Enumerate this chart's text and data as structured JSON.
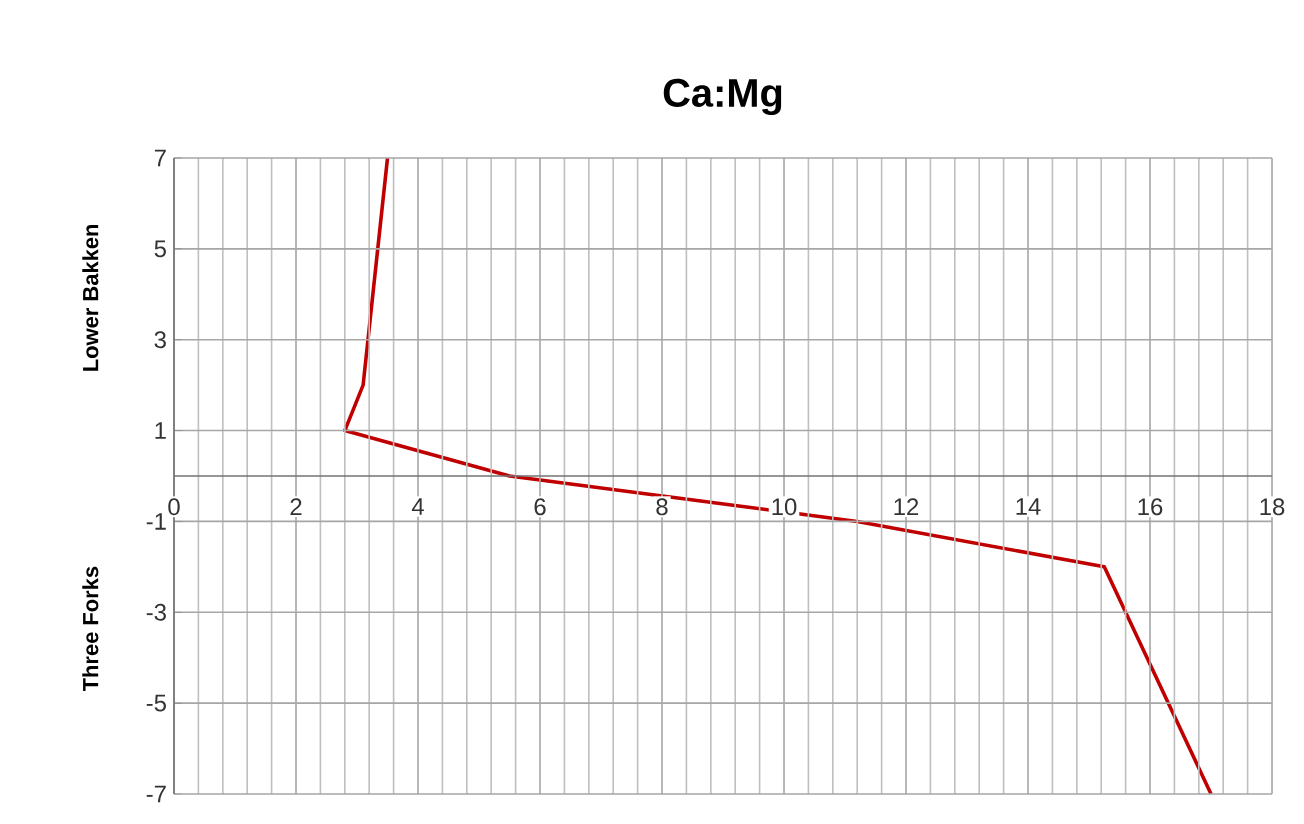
{
  "chart_data": {
    "type": "line",
    "title": "Ca:Mg",
    "series": [
      {
        "color": "#c00000",
        "x": [
          3.5,
          3.1,
          2.8,
          5.5,
          11.2,
          15.25,
          17
        ],
        "values": [
          7,
          2,
          1,
          0,
          -1,
          -2,
          -7
        ]
      }
    ],
    "xlim": [
      0,
      18
    ],
    "xticks": [
      0,
      2,
      4,
      6,
      8,
      10,
      12,
      14,
      16,
      18
    ],
    "ylim": [
      -7,
      7
    ],
    "yticks": [
      -7,
      -5,
      -3,
      -1,
      1,
      3,
      5,
      7
    ],
    "grid": true,
    "marker": "none",
    "line_style": "solid",
    "annotations": [
      "Lower Bakken",
      "Three Forks"
    ]
  }
}
